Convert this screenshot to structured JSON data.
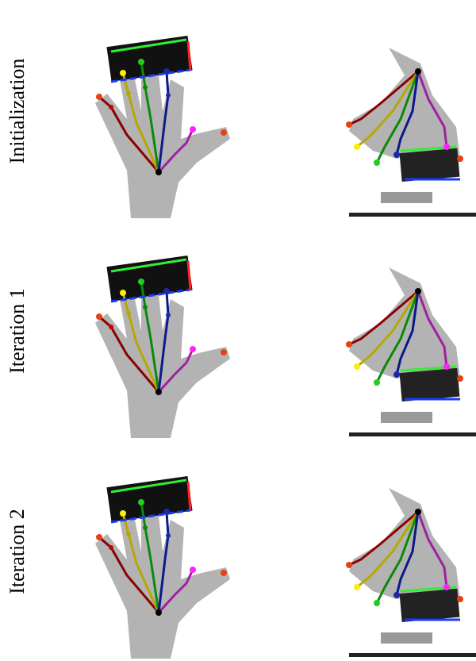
{
  "rows": [
    {
      "label": "Initialization"
    },
    {
      "label": "Iteration 1"
    },
    {
      "label": "Iteration 2"
    }
  ]
}
